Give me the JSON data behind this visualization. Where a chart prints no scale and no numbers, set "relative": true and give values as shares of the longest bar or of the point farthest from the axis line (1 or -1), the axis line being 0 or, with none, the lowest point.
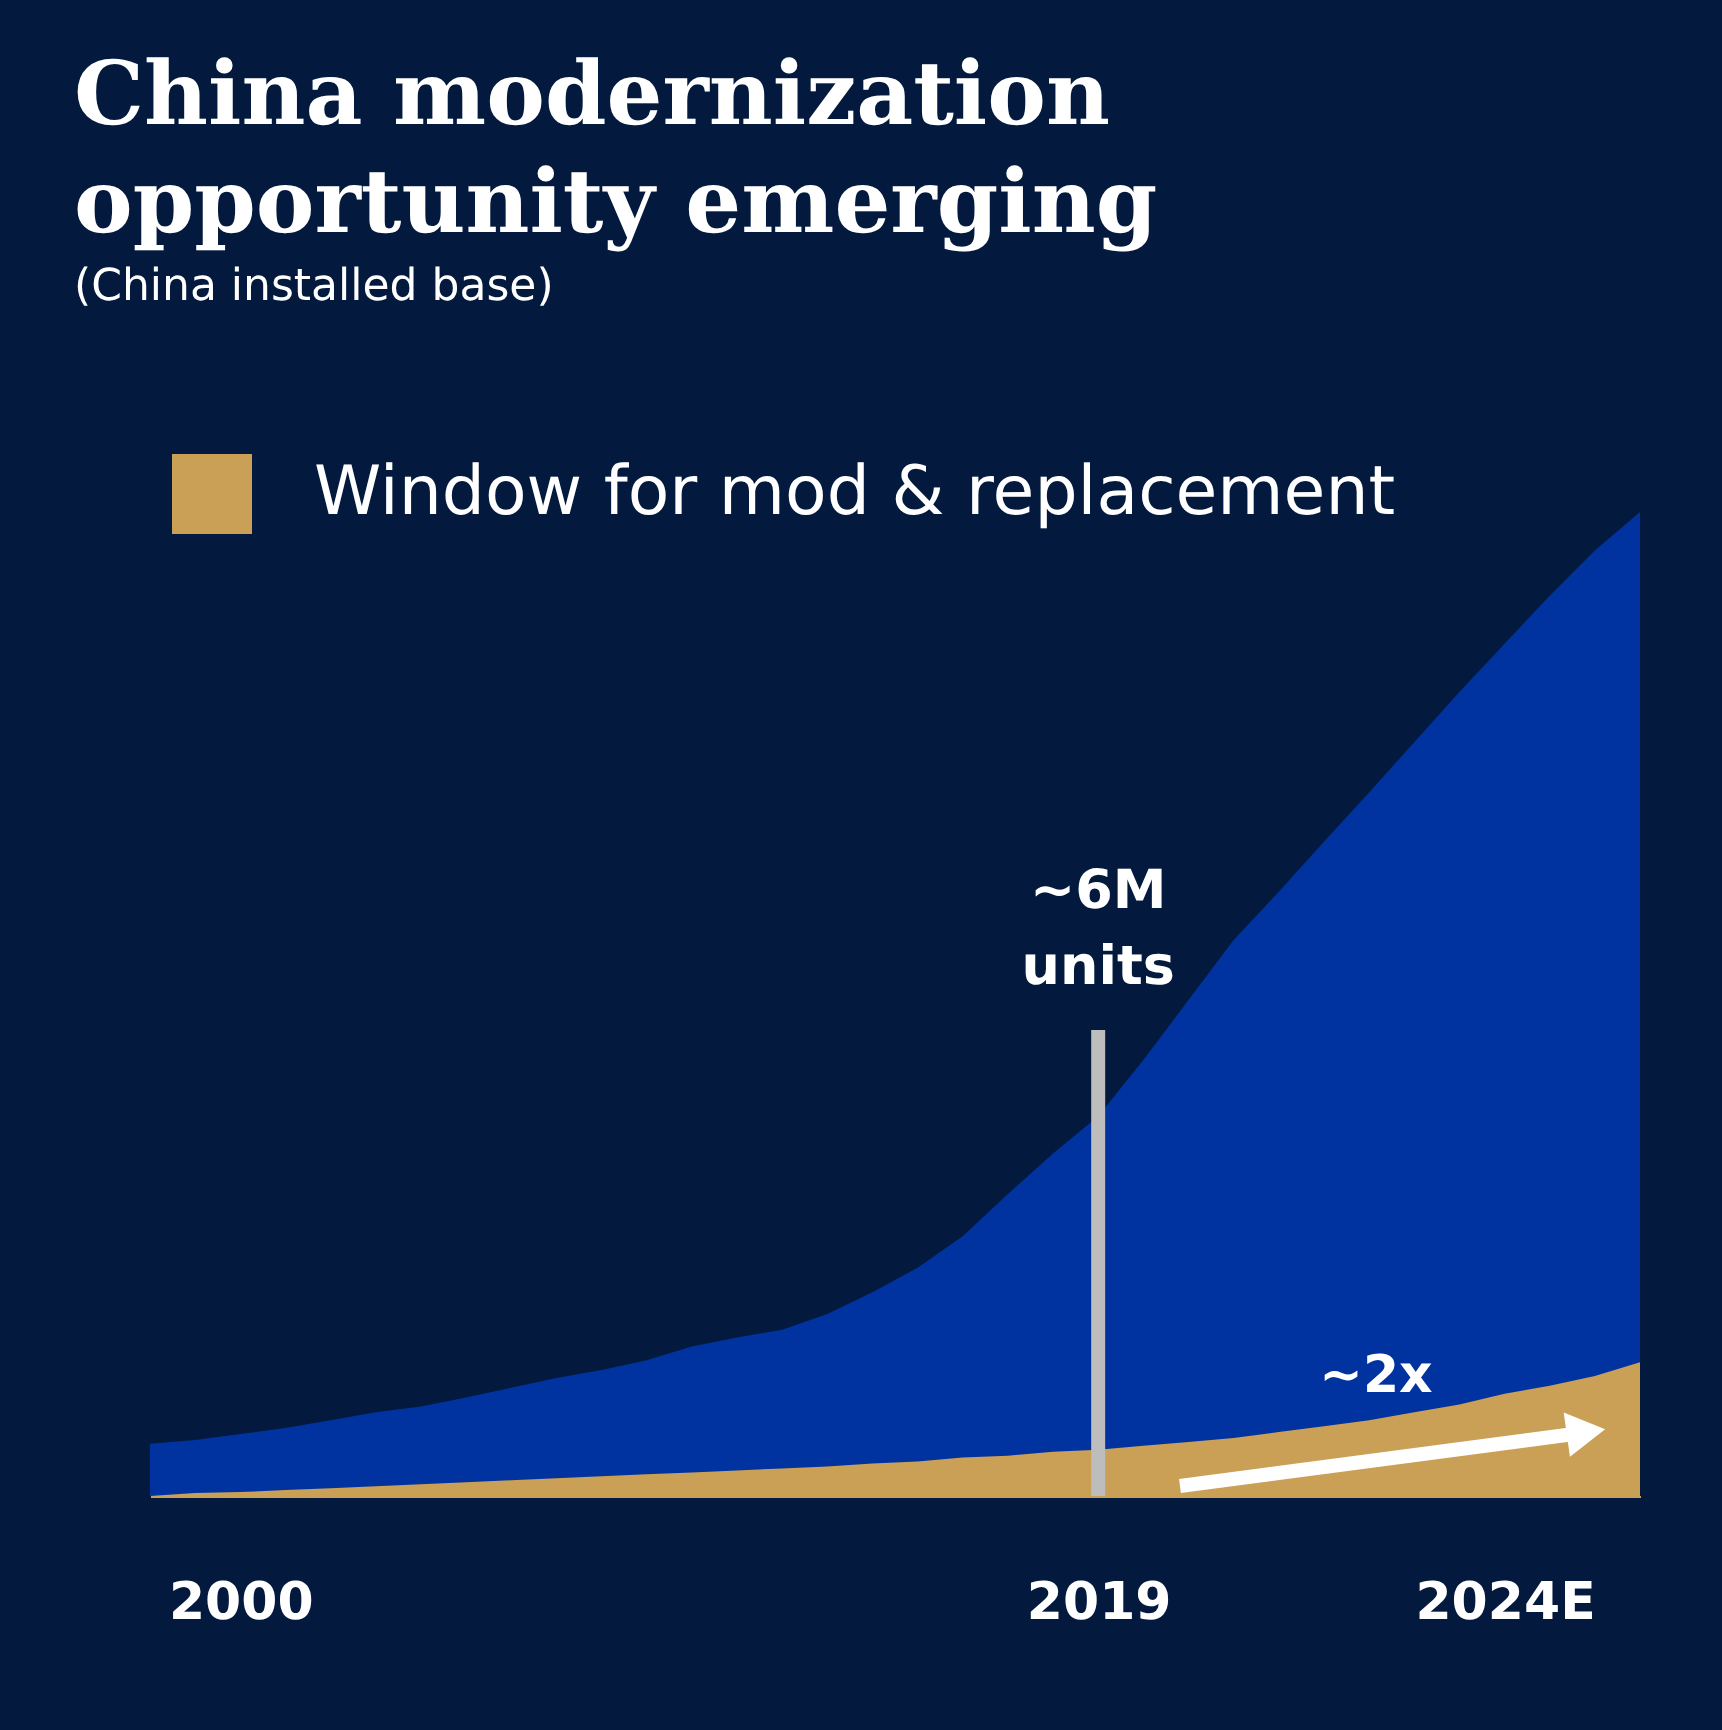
{
  "chart_data": {
    "type": "area",
    "title": "China modernization\nopportunity emerging",
    "subtitle": "(China installed base)",
    "categories": [
      null,
      null,
      "2000",
      null,
      null,
      null,
      null,
      null,
      null,
      null,
      null,
      null,
      null,
      null,
      null,
      null,
      null,
      null,
      null,
      null,
      null,
      "2019",
      null,
      null,
      null,
      null,
      null,
      null,
      null,
      null,
      "2024E",
      null,
      null,
      null
    ],
    "relative": true,
    "series": [
      {
        "color": "#0033a0",
        "values": [
          0.053,
          0.057,
          0.063,
          0.069,
          0.077,
          0.085,
          0.091,
          0.1,
          0.11,
          0.12,
          0.128,
          0.138,
          0.152,
          0.161,
          0.169,
          0.185,
          0.207,
          0.232,
          0.264,
          0.307,
          0.348,
          0.386,
          0.443,
          0.504,
          0.565,
          0.614,
          0.665,
          0.715,
          0.766,
          0.817,
          0.866,
          0.915,
          0.961,
          1.0
        ]
      },
      {
        "name": "Window for mod & replacement",
        "color": "#c9a055",
        "values": [
          0.0,
          0.003,
          0.004,
          0.006,
          0.008,
          0.01,
          0.012,
          0.014,
          0.016,
          0.018,
          0.02,
          0.022,
          0.024,
          0.026,
          0.028,
          0.03,
          0.033,
          0.035,
          0.039,
          0.041,
          0.045,
          0.047,
          0.051,
          0.055,
          0.059,
          0.065,
          0.071,
          0.077,
          0.085,
          0.093,
          0.104,
          0.112,
          0.122,
          0.136
        ]
      }
    ],
    "ref_lines": [
      {
        "axis": "x",
        "value": "2019",
        "label": "~6M units",
        "color": "#bdbdbd"
      }
    ],
    "annotations": [
      "~2x"
    ],
    "legend": "top left",
    "grid": false
  }
}
